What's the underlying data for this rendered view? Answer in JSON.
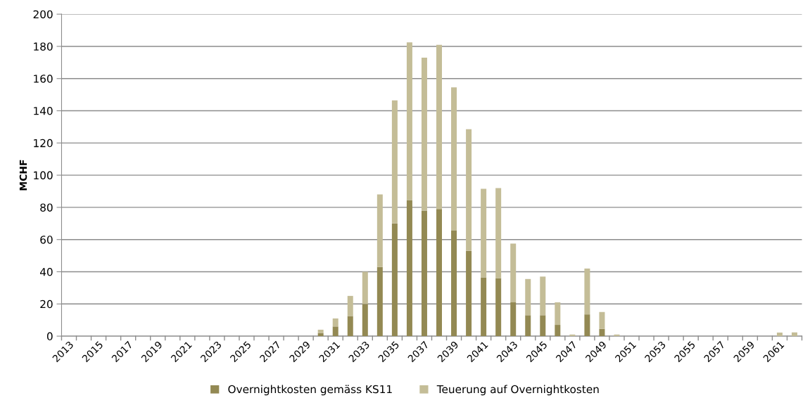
{
  "chart_data": {
    "type": "bar",
    "stacked": true,
    "ylabel": "MCHF",
    "categories": [
      "2013",
      null,
      "2015",
      null,
      "2017",
      null,
      "2019",
      null,
      "2021",
      null,
      "2023",
      null,
      "2025",
      null,
      "2027",
      null,
      "2029",
      null,
      "2031",
      null,
      "2033",
      null,
      "2035",
      null,
      "2037",
      null,
      "2039",
      null,
      "2041",
      null,
      "2043",
      null,
      "2045",
      null,
      "2047",
      null,
      "2049",
      null,
      "2051",
      null,
      "2053",
      null,
      "2055",
      null,
      "2057",
      null,
      "2059",
      null,
      "2061",
      null
    ],
    "series": [
      {
        "name": "Overnightkosten gemäss KS11",
        "color": "#938953",
        "values": [
          0,
          0,
          0,
          0,
          0,
          0,
          0,
          0,
          0,
          0,
          0,
          0,
          0,
          0,
          0,
          0,
          0,
          2,
          6,
          12.5,
          20,
          43,
          70,
          84.5,
          78,
          79,
          65.5,
          53,
          36.5,
          36,
          21,
          13,
          13,
          7,
          0,
          13.5,
          4.5,
          0,
          0,
          0,
          0,
          0,
          0,
          0,
          0,
          0,
          0,
          0,
          0,
          0
        ]
      },
      {
        "name": "Teuerung auf Overnightkosten",
        "color": "#c4bd97",
        "values": [
          0,
          0,
          0,
          0,
          0,
          0,
          0,
          0,
          0,
          0,
          0,
          0,
          0,
          0,
          0,
          0,
          0,
          2,
          5,
          12.5,
          20,
          45,
          76.5,
          98,
          95,
          102,
          89,
          75.5,
          55,
          56,
          36.5,
          22.5,
          24,
          14,
          1,
          28.5,
          10.5,
          1,
          0,
          0,
          0,
          0,
          0,
          0,
          0,
          0,
          0,
          0,
          2.2,
          2.3
        ]
      }
    ],
    "ylim": [
      0,
      200
    ],
    "yticks": [
      0,
      20,
      40,
      60,
      80,
      100,
      120,
      140,
      160,
      180,
      200
    ],
    "grid": "y",
    "legend": "bottom"
  }
}
